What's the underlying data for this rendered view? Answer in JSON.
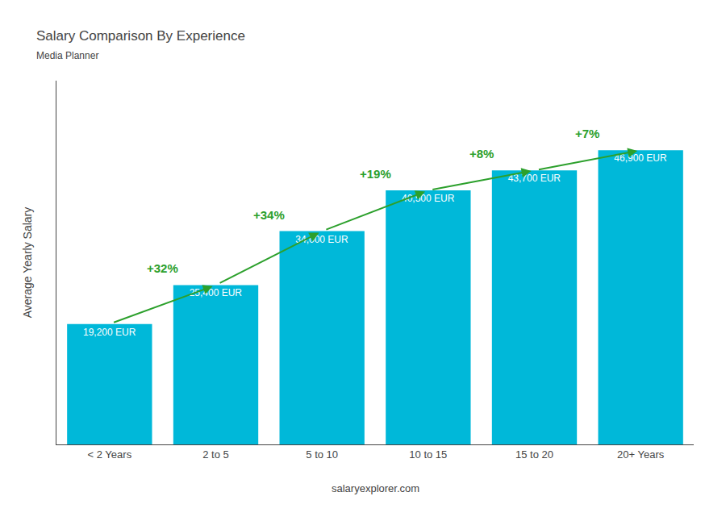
{
  "chart_data": {
    "type": "bar",
    "title": "Salary Comparison By Experience",
    "subtitle": "Media Planner",
    "categories": [
      "< 2 Years",
      "2 to 5",
      "5 to 10",
      "10 to 15",
      "15 to 20",
      "20+ Years"
    ],
    "values": [
      19200,
      25400,
      34000,
      40500,
      43700,
      46900
    ],
    "value_labels": [
      "19,200 EUR",
      "25,400 EUR",
      "34,000 EUR",
      "40,500 EUR",
      "43,700 EUR",
      "46,900 EUR"
    ],
    "data_labels": true,
    "color": "#00b8d9",
    "ylabel": "Average Yearly Salary",
    "ylim": [
      0,
      58000
    ],
    "yticks": [],
    "tick_labels": "x",
    "grid": false,
    "annotations": [
      {
        "text": "+32%",
        "category": "2 to 5"
      },
      {
        "text": "+34%",
        "category": "5 to 10"
      },
      {
        "text": "+19%",
        "category": "10 to 15"
      },
      {
        "text": "+8%",
        "category": "15 to 20"
      },
      {
        "text": "+7%",
        "category": "20+ Years"
      }
    ],
    "footer": "salaryexplorer.com"
  }
}
